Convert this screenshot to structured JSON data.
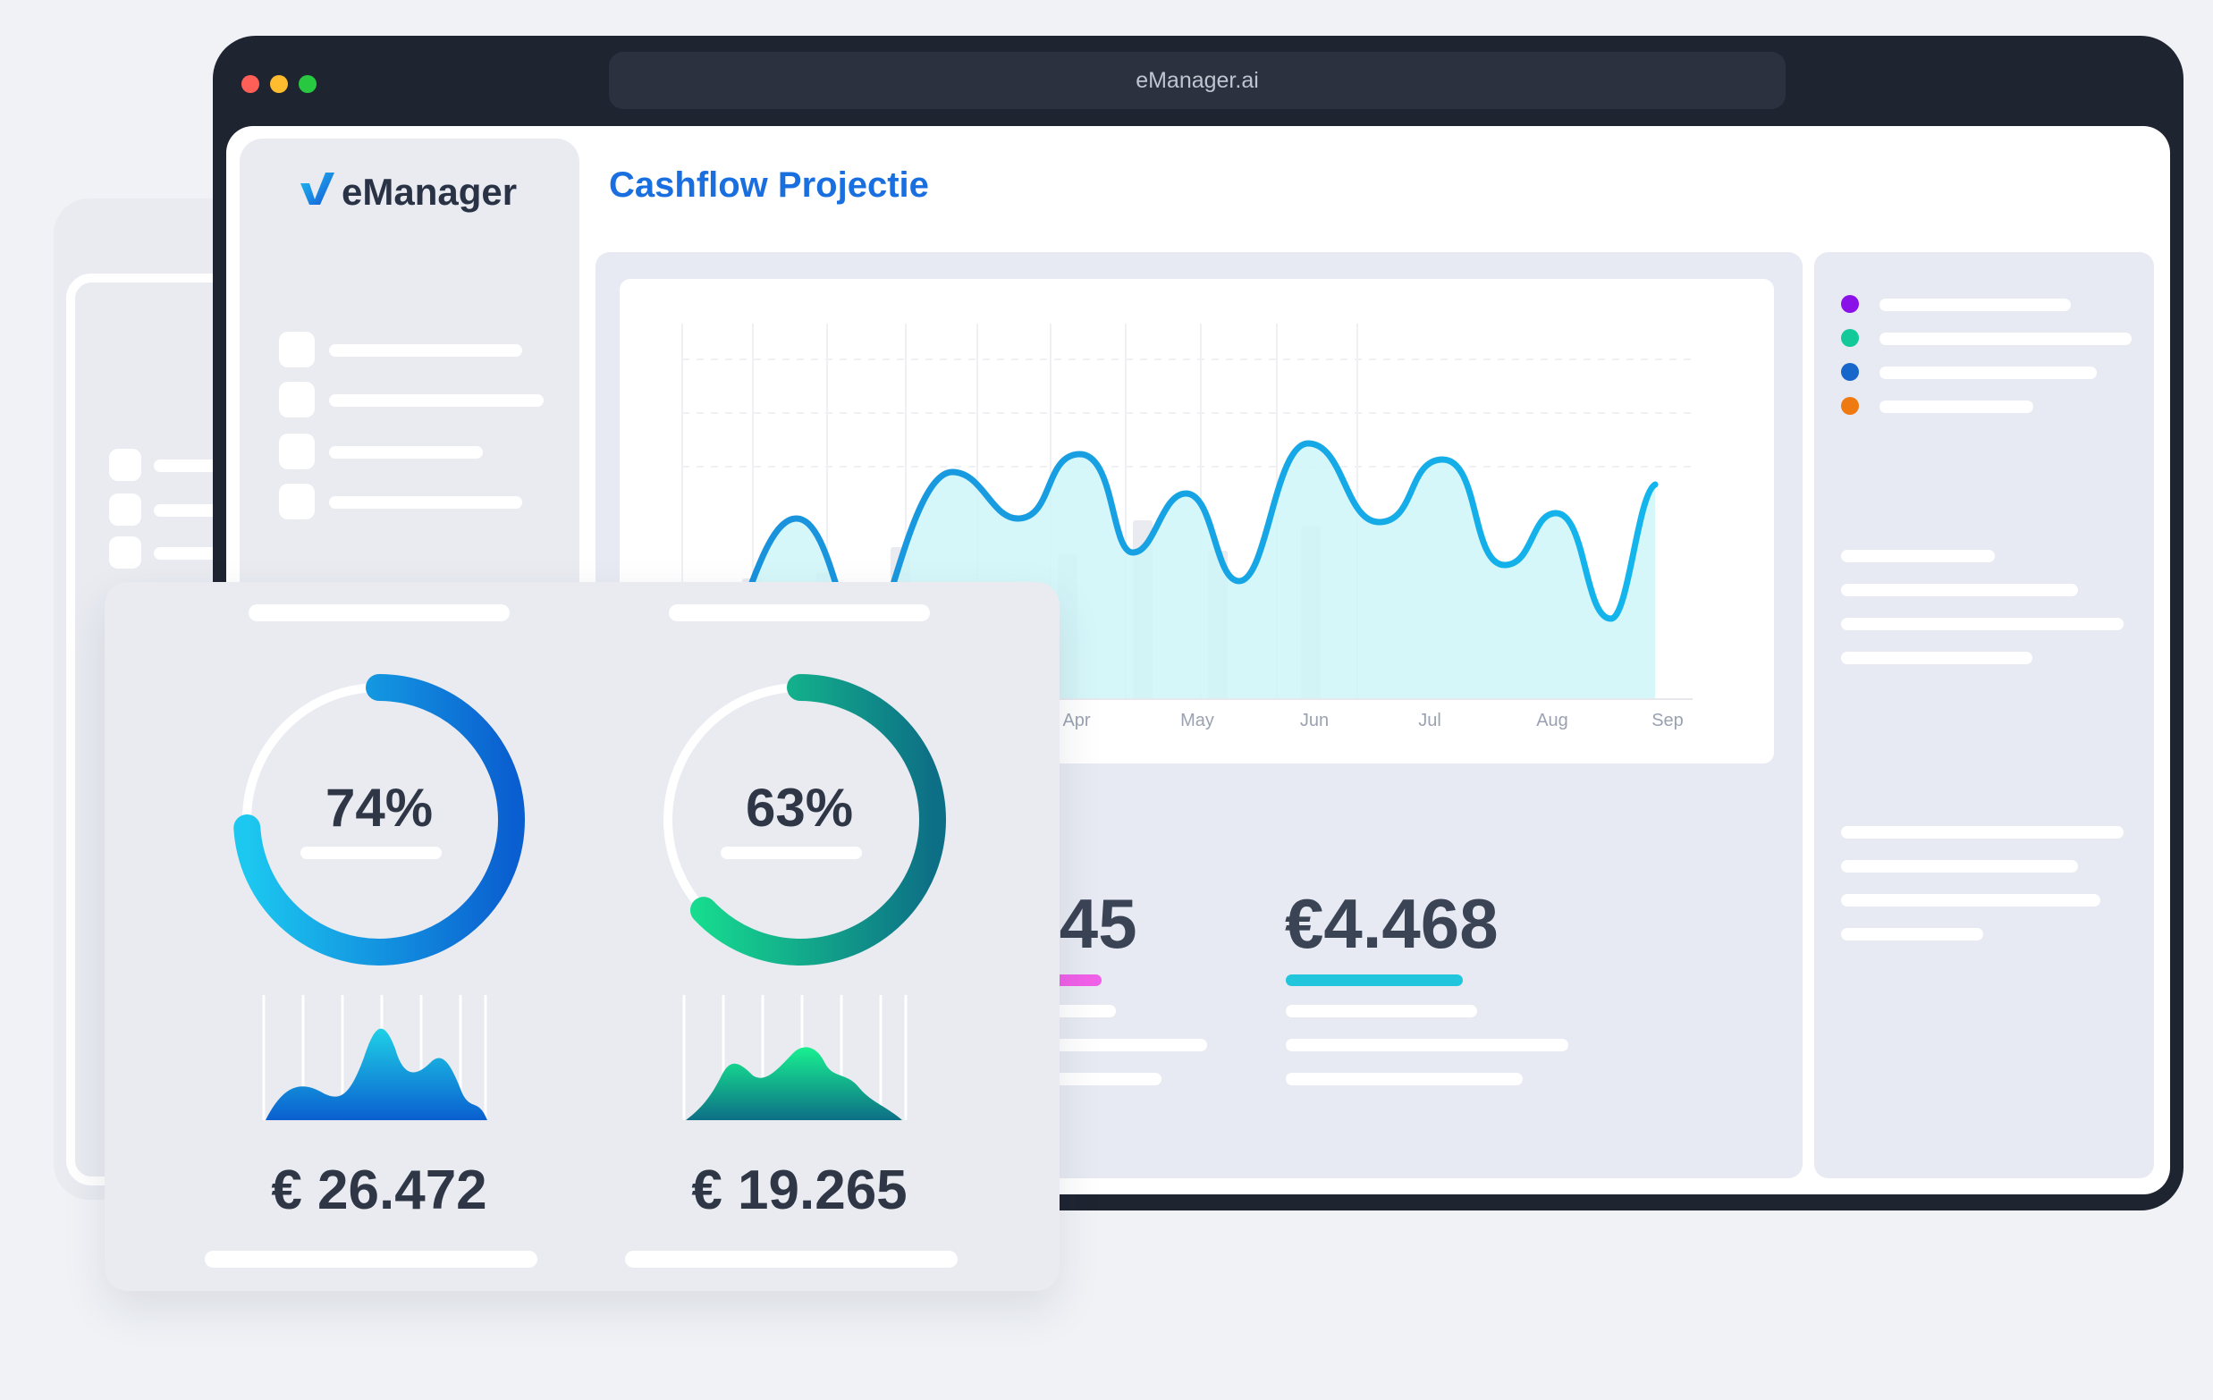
{
  "window": {
    "url": "eManager.ai",
    "traffic_lights": [
      "#ff5f57",
      "#febc2e",
      "#28c840"
    ]
  },
  "sidebar": {
    "logo_text": "eManager",
    "logo_icon": "emanager-logo-icon"
  },
  "header": {
    "title": "Cashflow Projectie"
  },
  "chart_data": {
    "type": "line",
    "x": [
      "Apr",
      "May",
      "Jun",
      "Jul",
      "Aug",
      "Sep"
    ],
    "xlabel": "",
    "ylabel": "",
    "grid": true,
    "line_color": "#1a9be0",
    "fill_color": "#cff6f8"
  },
  "legend": {
    "dots": [
      "#8a12e8",
      "#12c99a",
      "#1766c9",
      "#f07a12"
    ]
  },
  "stats": [
    {
      "value": "€9.945",
      "accent": "#f060e8"
    },
    {
      "value": "€4.468",
      "accent": "#22c6dc"
    }
  ],
  "summary_cards": [
    {
      "percent": "74%",
      "progress": 0.74,
      "amount": "€ 26.472",
      "gradient": [
        "#1cc8f0",
        "#0a5fd0"
      ]
    },
    {
      "percent": "63%",
      "progress": 0.63,
      "amount": "€ 19.265",
      "gradient": [
        "#18e890",
        "#0d6f86"
      ]
    }
  ]
}
